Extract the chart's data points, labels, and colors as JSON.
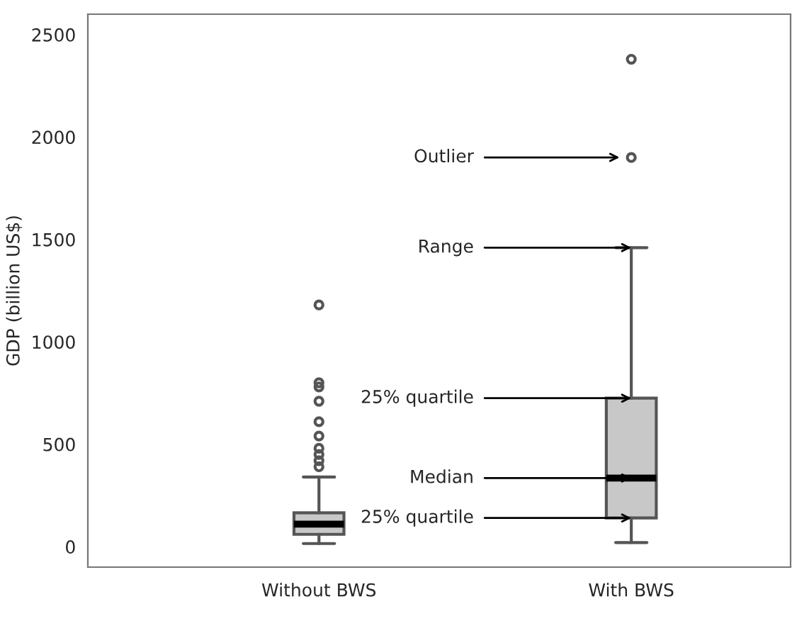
{
  "chart_data": {
    "type": "box",
    "ylabel": "GDP (billion US$)",
    "categories": [
      "Without BWS",
      "With BWS"
    ],
    "boxes": [
      {
        "low": 15,
        "q1": 60,
        "median": 110,
        "q3": 165,
        "high": 340,
        "outliers": [
          390,
          420,
          450,
          480,
          540,
          610,
          710,
          780,
          800,
          1180
        ]
      },
      {
        "low": 20,
        "q1": 140,
        "median": 335,
        "q3": 725,
        "high": 1460,
        "outliers": [
          1900,
          2380
        ]
      }
    ],
    "color": "#c8c8c8",
    "ylim": [
      -100,
      2600
    ],
    "yticks": [
      0,
      500,
      1000,
      1500,
      2000,
      2500
    ],
    "grid": false,
    "annotations": [
      "Outlier",
      {
        "text": "Range",
        "x": "With BWS",
        "y": 1460
      },
      {
        "text": "25% quartile",
        "x": "With BWS",
        "y": 725
      },
      {
        "text": "Median",
        "x": "With BWS",
        "y": 335
      },
      {
        "text": "25% quartile",
        "x": "With BWS",
        "y": 140
      }
    ]
  }
}
